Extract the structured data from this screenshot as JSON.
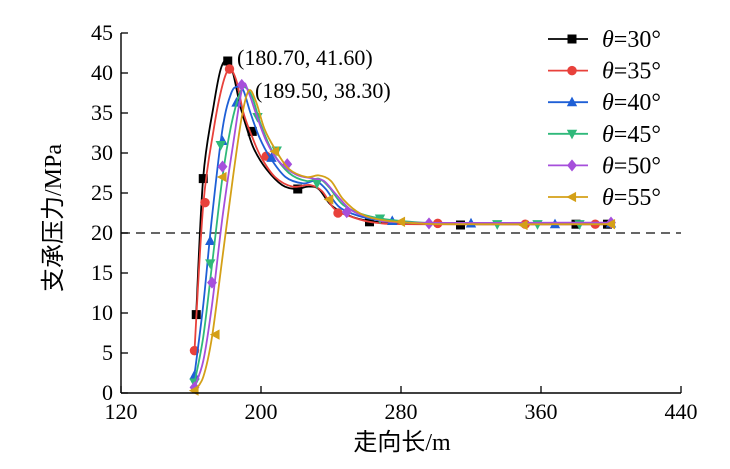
{
  "chart_data": {
    "type": "line",
    "xlabel": "走向长/m",
    "ylabel": "支承压力/MPa",
    "xlim": [
      120,
      440
    ],
    "ylim": [
      0,
      45
    ],
    "xticks": [
      120,
      200,
      280,
      360,
      440
    ],
    "yticks": [
      0,
      5,
      10,
      15,
      20,
      25,
      30,
      35,
      40,
      45
    ],
    "reference_line": {
      "y": 20,
      "style": "dashed"
    },
    "annotations": [
      {
        "text": "(180.70, 41.60)",
        "x": 180.7,
        "y": 41.6
      },
      {
        "text": "(189.50, 38.30)",
        "x": 189.5,
        "y": 38.3
      }
    ],
    "legend": {
      "position": "top-right",
      "prefix": "θ",
      "suffix": "="
    },
    "series": [
      {
        "name": "30°",
        "color": "#000000",
        "marker": "square",
        "curve": [
          [
            163,
            10
          ],
          [
            167,
            27
          ],
          [
            173,
            36
          ],
          [
            177,
            40.5
          ],
          [
            180.7,
            41.6
          ],
          [
            184,
            40
          ],
          [
            188,
            36
          ],
          [
            192,
            33
          ],
          [
            196,
            30.5
          ],
          [
            203,
            28
          ],
          [
            212,
            26
          ],
          [
            220,
            25.5
          ],
          [
            227,
            25.8
          ],
          [
            233,
            25.5
          ],
          [
            240,
            23.5
          ],
          [
            250,
            22.2
          ],
          [
            262,
            21.5
          ],
          [
            280,
            21.2
          ],
          [
            320,
            21.1
          ],
          [
            400,
            21.1
          ]
        ],
        "markers": [
          [
            163,
            9.8
          ],
          [
            167,
            26.8
          ],
          [
            181,
            41.5
          ],
          [
            195,
            32.7
          ],
          [
            221,
            25.5
          ],
          [
            262,
            21.4
          ],
          [
            314,
            21
          ],
          [
            380,
            21.1
          ],
          [
            398,
            21.1
          ]
        ]
      },
      {
        "name": "35°",
        "color": "#e8413b",
        "marker": "circle",
        "curve": [
          [
            162,
            5.3
          ],
          [
            167,
            23.5
          ],
          [
            173,
            33
          ],
          [
            178,
            38.5
          ],
          [
            182,
            40.5
          ],
          [
            186,
            39
          ],
          [
            190,
            35
          ],
          [
            195,
            32
          ],
          [
            200,
            29.5
          ],
          [
            208,
            27
          ],
          [
            218,
            25.8
          ],
          [
            228,
            26
          ],
          [
            235,
            25.2
          ],
          [
            242,
            23
          ],
          [
            252,
            22
          ],
          [
            265,
            21.3
          ],
          [
            290,
            21.1
          ],
          [
            400,
            21.1
          ]
        ],
        "markers": [
          [
            162,
            5.3
          ],
          [
            168,
            23.8
          ],
          [
            182,
            40.5
          ],
          [
            203,
            29.6
          ],
          [
            244,
            22.5
          ],
          [
            301,
            21.2
          ],
          [
            351,
            21.1
          ],
          [
            391,
            21.1
          ]
        ]
      },
      {
        "name": "40°",
        "color": "#1e5fd6",
        "marker": "triangle-up",
        "curve": [
          [
            162,
            2.3
          ],
          [
            167,
            11
          ],
          [
            172,
            22
          ],
          [
            178,
            33
          ],
          [
            183,
            37.5
          ],
          [
            187,
            38.3
          ],
          [
            190,
            37.8
          ],
          [
            194,
            35
          ],
          [
            199,
            32
          ],
          [
            205,
            29.5
          ],
          [
            214,
            27
          ],
          [
            224,
            26.2
          ],
          [
            231,
            26.5
          ],
          [
            237,
            25.5
          ],
          [
            245,
            23.2
          ],
          [
            258,
            22
          ],
          [
            275,
            21.4
          ],
          [
            300,
            21.2
          ],
          [
            400,
            21.2
          ]
        ],
        "markers": [
          [
            162,
            2.2
          ],
          [
            171,
            19
          ],
          [
            178,
            31.5
          ],
          [
            186,
            36.3
          ],
          [
            206,
            29.4
          ],
          [
            275,
            21.5
          ],
          [
            320,
            21.2
          ],
          [
            368,
            21.1
          ],
          [
            400,
            21.2
          ]
        ]
      },
      {
        "name": "45°",
        "color": "#2fb97a",
        "marker": "triangle-down",
        "curve": [
          [
            162,
            1.3
          ],
          [
            167,
            7
          ],
          [
            172,
            16
          ],
          [
            178,
            27
          ],
          [
            183,
            33.5
          ],
          [
            188,
            37.5
          ],
          [
            191,
            38.2
          ],
          [
            195,
            37
          ],
          [
            200,
            33.5
          ],
          [
            207,
            30
          ],
          [
            216,
            27.5
          ],
          [
            226,
            26.5
          ],
          [
            233,
            26.8
          ],
          [
            239,
            25.7
          ],
          [
            247,
            23.5
          ],
          [
            260,
            22.2
          ],
          [
            280,
            21.5
          ],
          [
            310,
            21.2
          ],
          [
            400,
            21.2
          ]
        ],
        "markers": [
          [
            162,
            1.3
          ],
          [
            171,
            16.2
          ],
          [
            177,
            31
          ],
          [
            198,
            34.5
          ],
          [
            209,
            30.3
          ],
          [
            232,
            26.2
          ],
          [
            268,
            21.8
          ],
          [
            335,
            21.1
          ],
          [
            358,
            21.1
          ],
          [
            382,
            21.1
          ]
        ]
      },
      {
        "name": "50°",
        "color": "#a64fdb",
        "marker": "diamond",
        "curve": [
          [
            162,
            0.8
          ],
          [
            167,
            4
          ],
          [
            172,
            11
          ],
          [
            178,
            22
          ],
          [
            184,
            31
          ],
          [
            189.5,
            38.3
          ],
          [
            193,
            37.5
          ],
          [
            197,
            35
          ],
          [
            203,
            31.5
          ],
          [
            210,
            29
          ],
          [
            220,
            27.3
          ],
          [
            230,
            26.8
          ],
          [
            236,
            26.5
          ],
          [
            243,
            24.8
          ],
          [
            252,
            22.8
          ],
          [
            265,
            21.8
          ],
          [
            285,
            21.3
          ],
          [
            400,
            21.3
          ]
        ],
        "markers": [
          [
            162,
            0.7
          ],
          [
            172,
            13.8
          ],
          [
            178,
            28.3
          ],
          [
            189,
            38.5
          ],
          [
            215,
            28.6
          ],
          [
            249,
            22.6
          ],
          [
            296,
            21.2
          ],
          [
            400,
            21.3
          ]
        ]
      },
      {
        "name": "55°",
        "color": "#d4a017",
        "marker": "triangle-left",
        "curve": [
          [
            162,
            0.3
          ],
          [
            167,
            2
          ],
          [
            172,
            7
          ],
          [
            178,
            17
          ],
          [
            184,
            27
          ],
          [
            189,
            34.5
          ],
          [
            193,
            37.8
          ],
          [
            197,
            36.5
          ],
          [
            202,
            33
          ],
          [
            208,
            30.5
          ],
          [
            216,
            28
          ],
          [
            226,
            27
          ],
          [
            233,
            27.2
          ],
          [
            240,
            26.5
          ],
          [
            247,
            24.2
          ],
          [
            257,
            22.4
          ],
          [
            270,
            21.6
          ],
          [
            290,
            21.2
          ],
          [
            310,
            21.1
          ],
          [
            400,
            21.1
          ]
        ],
        "markers": [
          [
            162,
            0.3
          ],
          [
            174,
            7.3
          ],
          [
            178,
            27
          ],
          [
            208,
            30.2
          ],
          [
            239,
            24.2
          ],
          [
            280,
            21.4
          ],
          [
            350,
            21
          ],
          [
            400,
            21.1
          ]
        ]
      }
    ]
  }
}
